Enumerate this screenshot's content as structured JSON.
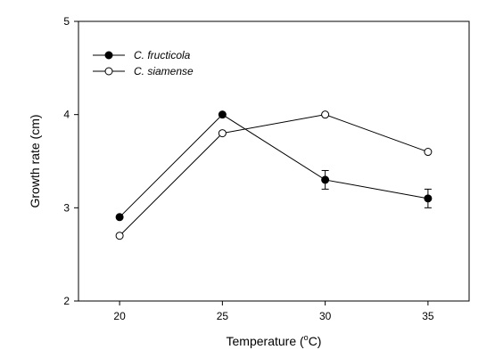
{
  "chart_data": {
    "type": "line",
    "xlabel": "Temperature (",
    "xlabel_sup": "o",
    "xlabel_end": "C)",
    "ylabel": "Growth rate (cm)",
    "xlim": [
      18,
      37
    ],
    "ylim": [
      2,
      5
    ],
    "x_ticks": [
      20,
      25,
      30,
      35
    ],
    "y_ticks": [
      2,
      3,
      4,
      5
    ],
    "grid": false,
    "legend_position": "top-left",
    "series": [
      {
        "name": "C. fructicola",
        "marker": "filled-circle",
        "color": "#000000",
        "x": [
          20,
          25,
          30,
          35
        ],
        "values": [
          2.9,
          4.0,
          3.3,
          3.1
        ],
        "errors": [
          0,
          0,
          0.1,
          0.1
        ]
      },
      {
        "name": "C. siamense",
        "marker": "open-circle",
        "color": "#000000",
        "x": [
          20,
          25,
          30,
          35
        ],
        "values": [
          2.7,
          3.8,
          4.0,
          3.6
        ],
        "errors": [
          0,
          0,
          0,
          0
        ]
      }
    ]
  }
}
